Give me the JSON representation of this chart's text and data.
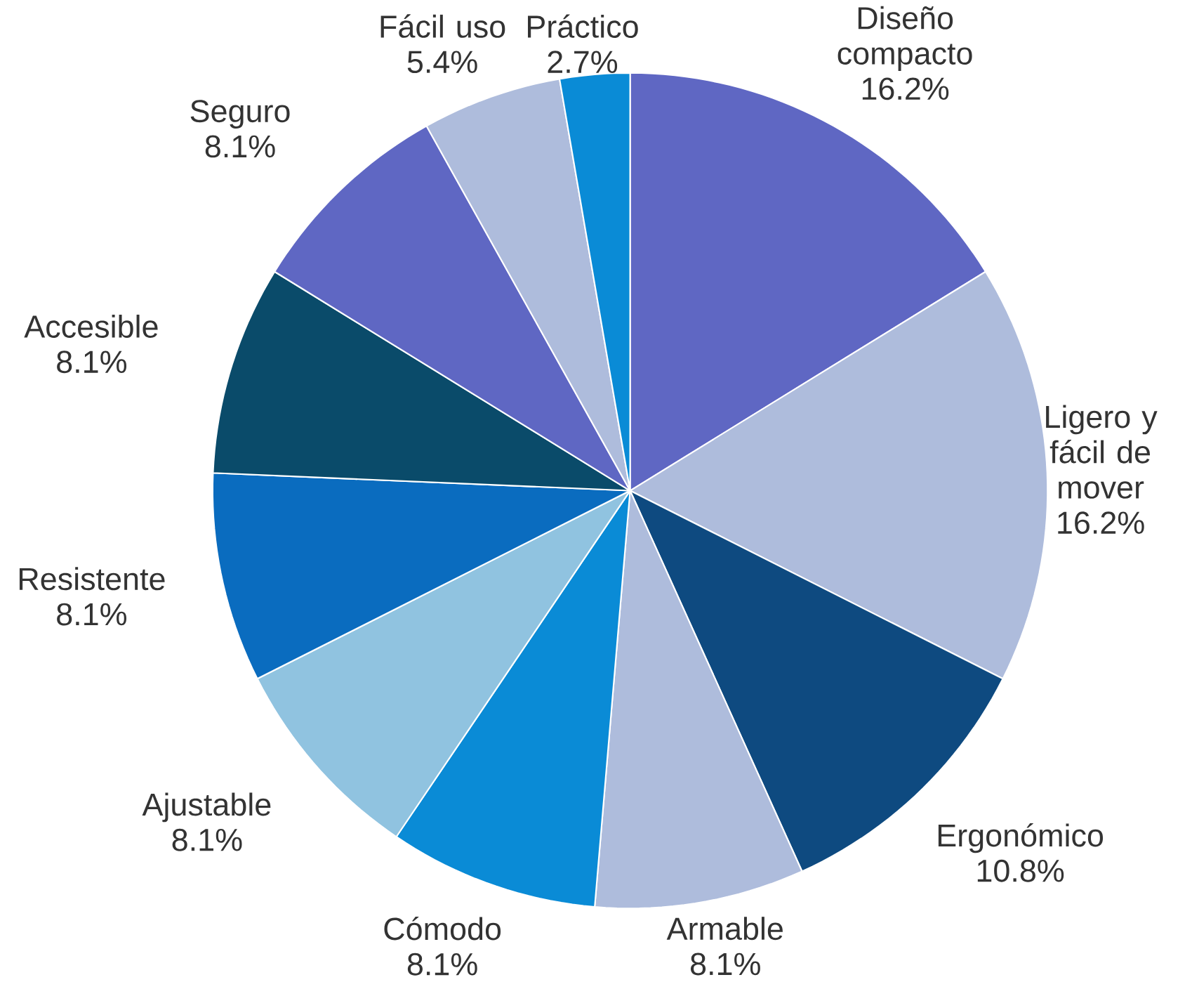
{
  "chart_data": {
    "type": "pie",
    "categories": [
      "Diseño compacto",
      "Ligero y fácil de mover",
      "Ergonómico",
      "Armable",
      "Cómodo",
      "Ajustable",
      "Resistente",
      "Accesible",
      "Seguro",
      "Fácil uso",
      "Práctico"
    ],
    "values": [
      16.2,
      16.2,
      10.8,
      8.1,
      8.1,
      8.1,
      8.1,
      8.1,
      8.1,
      5.4,
      2.7
    ],
    "value_labels": [
      "16.2%",
      "16.2%",
      "10.8%",
      "8.1%",
      "8.1%",
      "8.1%",
      "8.1%",
      "8.1%",
      "8.1%",
      "5.4%",
      "2.7%"
    ],
    "colors": [
      "#5f67c3",
      "#aebcdc",
      "#0e4a80",
      "#aebcdc",
      "#0a8bd6",
      "#90c3e0",
      "#0a6cbf",
      "#0a4b6a",
      "#5f67c3",
      "#aebcdc",
      "#0a8bd6"
    ]
  }
}
